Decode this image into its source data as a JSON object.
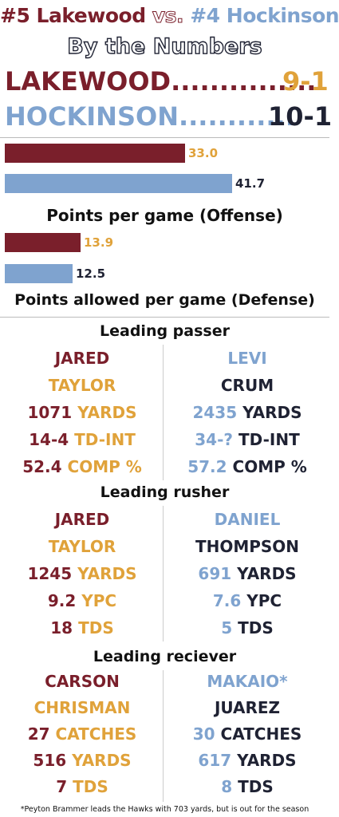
{
  "title": {
    "left": "#5 Lakewood",
    "vs": "vs.",
    "right": "#4 Hockinson"
  },
  "subtitle": "By the Numbers",
  "records": {
    "lakewood": {
      "team": "LAKEWOOD",
      "dots": "...............",
      "record": "9-1"
    },
    "hockinson": {
      "team": "HOCKINSON",
      "dots": "............",
      "record": "10-1"
    }
  },
  "colors": {
    "maroon": "#7a1f2b",
    "gold": "#e0a23a",
    "blue": "#7fa3cf",
    "navy": "#1f2233"
  },
  "chart_data": [
    {
      "type": "bar",
      "title": "Points per game (Offense)",
      "categories": [
        "Lakewood",
        "Hockinson"
      ],
      "values": [
        33.0,
        41.7
      ],
      "value_labels": [
        "33.0",
        "41.7"
      ]
    },
    {
      "type": "bar",
      "title": "Points allowed per game (Defense)",
      "categories": [
        "Lakewood",
        "Hockinson"
      ],
      "values": [
        13.9,
        12.5
      ],
      "value_labels": [
        "13.9",
        "12.5"
      ]
    }
  ],
  "sections": {
    "passer": {
      "heading": "Leading passer",
      "left": {
        "first": "JARED",
        "last": "TAYLOR",
        "yards_num": "1071",
        "yards_lbl": "YARDS",
        "tdint_num": "14-4",
        "tdint_lbl": "TD-INT",
        "comp_num": "52.4",
        "comp_lbl": "COMP %"
      },
      "right": {
        "first": "LEVI",
        "last": "CRUM",
        "yards_num": "2435",
        "yards_lbl": "YARDS",
        "tdint_num": "34-?",
        "tdint_lbl": "TD-INT",
        "comp_num": "57.2",
        "comp_lbl": "COMP %"
      }
    },
    "rusher": {
      "heading": "Leading rusher",
      "left": {
        "first": "JARED",
        "last": "TAYLOR",
        "yards_num": "1245",
        "yards_lbl": "YARDS",
        "ypc_num": "9.2",
        "ypc_lbl": "YPC",
        "tds_num": "18",
        "tds_lbl": "TDS"
      },
      "right": {
        "first": "DANIEL",
        "last": "THOMPSON",
        "yards_num": "691",
        "yards_lbl": "YARDS",
        "ypc_num": "7.6",
        "ypc_lbl": "YPC",
        "tds_num": "5",
        "tds_lbl": "TDS"
      }
    },
    "receiver": {
      "heading": "Leading reciever",
      "left": {
        "first": "CARSON",
        "last": "CHRISMAN",
        "catches_num": "27",
        "catches_lbl": "CATCHES",
        "yards_num": "516",
        "yards_lbl": "YARDS",
        "tds_num": "7",
        "tds_lbl": "TDS"
      },
      "right": {
        "first": "MAKAIO*",
        "last": "JUAREZ",
        "catches_num": "30",
        "catches_lbl": "CATCHES",
        "yards_num": "617",
        "yards_lbl": "YARDS",
        "tds_num": "8",
        "tds_lbl": "TDS"
      }
    }
  },
  "footnote": "*Peyton Brammer leads the Hawks with 703 yards, but is out for the season"
}
